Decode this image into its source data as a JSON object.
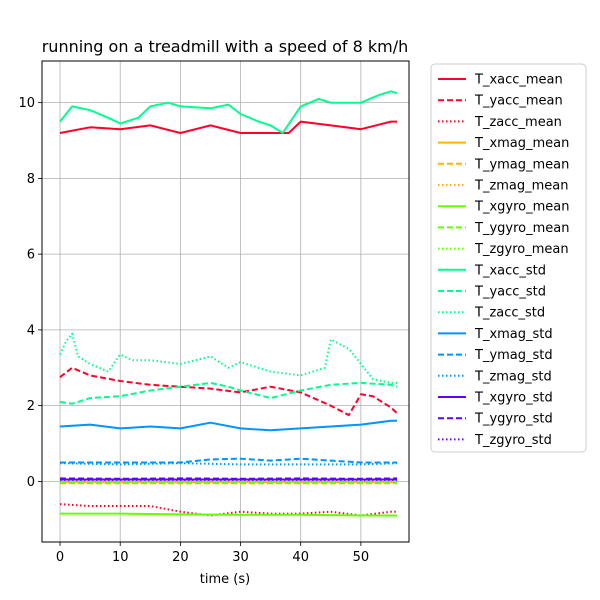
{
  "chart_data": {
    "type": "line",
    "title": "running on a treadmill with a speed of 8 km/h",
    "xlabel": "time (s)",
    "ylabel": "",
    "xlim": [
      -3,
      58
    ],
    "ylim": [
      -1.6,
      11.1
    ],
    "xticks": [
      0,
      10,
      20,
      30,
      40,
      50
    ],
    "yticks": [
      0,
      2,
      4,
      6,
      8,
      10
    ],
    "grid": true,
    "legend_position": "outside-right",
    "series": [
      {
        "name": "T_xacc_mean",
        "color": "#ff0029",
        "dash": "solid",
        "x": [
          0,
          5,
          10,
          15,
          20,
          25,
          30,
          35,
          38,
          40,
          45,
          50,
          55,
          56
        ],
        "y": [
          9.2,
          9.35,
          9.3,
          9.4,
          9.2,
          9.4,
          9.2,
          9.2,
          9.2,
          9.5,
          9.4,
          9.3,
          9.5,
          9.5
        ]
      },
      {
        "name": "T_yacc_mean",
        "color": "#ff0029",
        "dash": "dashed",
        "x": [
          0,
          2,
          5,
          10,
          15,
          20,
          25,
          30,
          35,
          40,
          45,
          48,
          50,
          52,
          55,
          56
        ],
        "y": [
          2.75,
          3.0,
          2.8,
          2.65,
          2.55,
          2.5,
          2.45,
          2.35,
          2.5,
          2.35,
          2.0,
          1.75,
          2.3,
          2.25,
          1.95,
          1.8
        ]
      },
      {
        "name": "T_zacc_mean",
        "color": "#ff0029",
        "dash": "dotted",
        "x": [
          0,
          5,
          10,
          15,
          20,
          25,
          30,
          35,
          40,
          45,
          50,
          55,
          56
        ],
        "y": [
          -0.6,
          -0.65,
          -0.65,
          -0.65,
          -0.8,
          -0.9,
          -0.8,
          -0.85,
          -0.85,
          -0.8,
          -0.9,
          -0.8,
          -0.8
        ]
      },
      {
        "name": "T_xmag_mean",
        "color": "#ffb400",
        "dash": "solid",
        "x": [
          0,
          56
        ],
        "y": [
          -0.02,
          -0.02
        ]
      },
      {
        "name": "T_ymag_mean",
        "color": "#ffb400",
        "dash": "dashed",
        "x": [
          0,
          56
        ],
        "y": [
          -0.05,
          -0.05
        ]
      },
      {
        "name": "T_zmag_mean",
        "color": "#ffb400",
        "dash": "dotted",
        "x": [
          0,
          56
        ],
        "y": [
          0.0,
          0.0
        ]
      },
      {
        "name": "T_xgyro_mean",
        "color": "#66ff00",
        "dash": "solid",
        "x": [
          0,
          10,
          20,
          30,
          40,
          50,
          56
        ],
        "y": [
          -0.85,
          -0.85,
          -0.87,
          -0.88,
          -0.88,
          -0.9,
          -0.9
        ]
      },
      {
        "name": "T_ygyro_mean",
        "color": "#66ff00",
        "dash": "dashed",
        "x": [
          0,
          10,
          20,
          30,
          40,
          50,
          56
        ],
        "y": [
          -0.03,
          -0.03,
          -0.03,
          -0.03,
          -0.03,
          -0.03,
          -0.03
        ]
      },
      {
        "name": "T_zgyro_mean",
        "color": "#66ff00",
        "dash": "dotted",
        "x": [
          0,
          56
        ],
        "y": [
          0.02,
          0.02
        ]
      },
      {
        "name": "T_xacc_std",
        "color": "#00ff8c",
        "dash": "solid",
        "x": [
          0,
          2,
          5,
          8,
          10,
          13,
          15,
          18,
          20,
          25,
          28,
          30,
          33,
          35,
          37,
          40,
          43,
          45,
          50,
          53,
          55,
          56
        ],
        "y": [
          9.5,
          9.9,
          9.8,
          9.6,
          9.45,
          9.6,
          9.9,
          10.0,
          9.9,
          9.85,
          9.95,
          9.7,
          9.5,
          9.4,
          9.2,
          9.9,
          10.1,
          10.0,
          10.0,
          10.2,
          10.3,
          10.25
        ]
      },
      {
        "name": "T_yacc_std",
        "color": "#00ff8c",
        "dash": "dashed",
        "x": [
          0,
          2,
          5,
          10,
          15,
          20,
          25,
          28,
          30,
          35,
          40,
          45,
          50,
          55,
          56
        ],
        "y": [
          2.1,
          2.05,
          2.2,
          2.25,
          2.4,
          2.5,
          2.6,
          2.5,
          2.4,
          2.2,
          2.4,
          2.55,
          2.6,
          2.55,
          2.5
        ]
      },
      {
        "name": "T_zacc_std",
        "color": "#00ff8c",
        "dash": "dotted",
        "x": [
          0,
          1,
          2,
          3,
          5,
          8,
          10,
          12,
          15,
          20,
          25,
          28,
          30,
          35,
          40,
          44,
          45,
          48,
          49,
          52,
          55,
          56
        ],
        "y": [
          3.35,
          3.7,
          3.9,
          3.3,
          3.1,
          2.9,
          3.35,
          3.2,
          3.2,
          3.1,
          3.3,
          3.0,
          3.15,
          2.9,
          2.8,
          3.0,
          3.75,
          3.5,
          3.3,
          2.7,
          2.6,
          2.6
        ]
      },
      {
        "name": "T_xmag_std",
        "color": "#0094ff",
        "dash": "solid",
        "x": [
          0,
          5,
          10,
          15,
          20,
          25,
          30,
          35,
          40,
          45,
          50,
          55,
          56
        ],
        "y": [
          1.45,
          1.5,
          1.4,
          1.45,
          1.4,
          1.55,
          1.4,
          1.35,
          1.4,
          1.45,
          1.5,
          1.6,
          1.6
        ]
      },
      {
        "name": "T_ymag_std",
        "color": "#0094ff",
        "dash": "dashed",
        "x": [
          0,
          10,
          20,
          25,
          30,
          35,
          40,
          45,
          50,
          56
        ],
        "y": [
          0.5,
          0.5,
          0.5,
          0.58,
          0.6,
          0.55,
          0.6,
          0.55,
          0.5,
          0.5
        ]
      },
      {
        "name": "T_zmag_std",
        "color": "#0094ff",
        "dash": "dotted",
        "x": [
          0,
          10,
          20,
          30,
          40,
          50,
          56
        ],
        "y": [
          0.48,
          0.45,
          0.48,
          0.45,
          0.45,
          0.45,
          0.48
        ]
      },
      {
        "name": "T_xgyro_std",
        "color": "#6200ff",
        "dash": "solid",
        "x": [
          0,
          10,
          20,
          30,
          40,
          50,
          56
        ],
        "y": [
          0.05,
          0.05,
          0.05,
          0.05,
          0.05,
          0.05,
          0.05
        ]
      },
      {
        "name": "T_ygyro_std",
        "color": "#6200ff",
        "dash": "dashed",
        "x": [
          0,
          10,
          20,
          30,
          40,
          50,
          56
        ],
        "y": [
          0.08,
          0.07,
          0.08,
          0.07,
          0.08,
          0.07,
          0.08
        ]
      },
      {
        "name": "T_zgyro_std",
        "color": "#6200ff",
        "dash": "dotted",
        "x": [
          0,
          10,
          20,
          30,
          40,
          50,
          56
        ],
        "y": [
          0.04,
          0.04,
          0.04,
          0.04,
          0.04,
          0.04,
          0.04
        ]
      }
    ]
  }
}
